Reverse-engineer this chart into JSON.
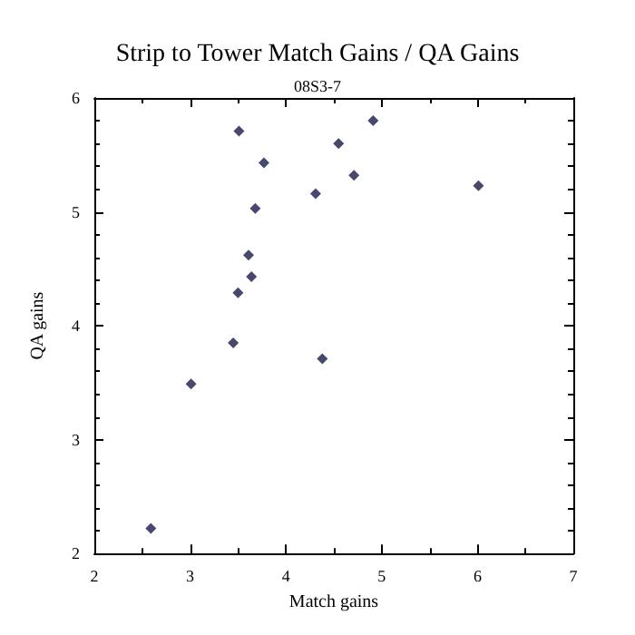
{
  "chart_data": {
    "type": "scatter",
    "title": "Strip to Tower Match Gains / QA Gains",
    "subtitle": "08S3-7",
    "xlabel": "Match gains",
    "ylabel": "QA gains",
    "x": [
      2.59,
      3.01,
      3.45,
      4.38,
      3.5,
      3.64,
      3.61,
      3.68,
      3.51,
      3.77,
      4.31,
      4.55,
      4.91,
      4.71,
      6.01
    ],
    "series": [
      {
        "color": "#1a1a4a",
        "values": [
          2.22,
          3.49,
          3.85,
          3.71,
          4.29,
          4.43,
          4.62,
          5.03,
          5.71,
          5.43,
          5.16,
          5.6,
          5.8,
          5.32,
          5.23
        ]
      }
    ],
    "xlim": [
      2,
      7
    ],
    "xticks": [
      2,
      3,
      4,
      5,
      6,
      7
    ],
    "ylim": [
      2,
      6
    ],
    "yticks": [
      2,
      3,
      4,
      5,
      6
    ],
    "grid": false,
    "marker": "diamond"
  }
}
